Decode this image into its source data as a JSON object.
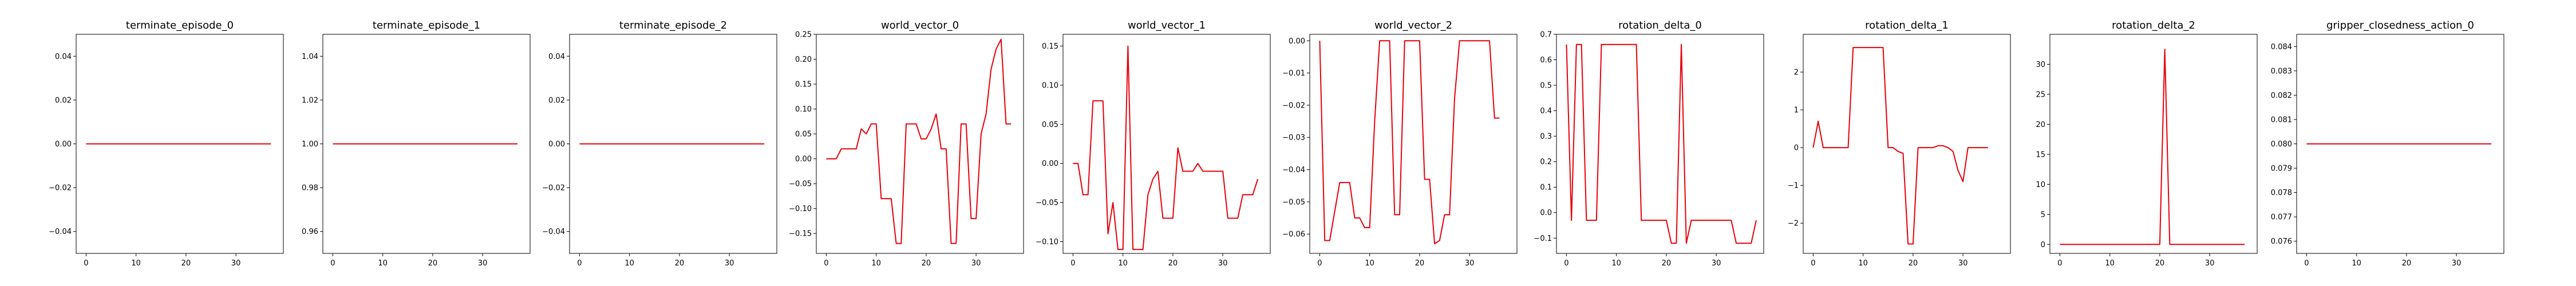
{
  "chart_data": [
    {
      "type": "line",
      "title": "terminate_episode_0",
      "ylim": [
        -0.05,
        0.05
      ],
      "xlim": [
        -2,
        39.5
      ],
      "xticks": [
        0,
        10,
        20,
        30
      ],
      "yticks": [
        -0.04,
        -0.02,
        0.0,
        0.02,
        0.04
      ],
      "ydecimals": 2,
      "series": [
        {
          "color": "#e8000b",
          "values": [
            0,
            0,
            0,
            0,
            0,
            0,
            0,
            0,
            0,
            0,
            0,
            0,
            0,
            0,
            0,
            0,
            0,
            0,
            0,
            0,
            0,
            0,
            0,
            0,
            0,
            0,
            0,
            0,
            0,
            0,
            0,
            0,
            0,
            0,
            0,
            0,
            0,
            0
          ]
        }
      ]
    },
    {
      "type": "line",
      "title": "terminate_episode_1",
      "ylim": [
        0.95,
        1.05
      ],
      "xlim": [
        -2,
        39.5
      ],
      "xticks": [
        0,
        10,
        20,
        30
      ],
      "yticks": [
        0.96,
        0.98,
        1.0,
        1.02,
        1.04
      ],
      "ydecimals": 2,
      "series": [
        {
          "color": "#e8000b",
          "values": [
            1,
            1,
            1,
            1,
            1,
            1,
            1,
            1,
            1,
            1,
            1,
            1,
            1,
            1,
            1,
            1,
            1,
            1,
            1,
            1,
            1,
            1,
            1,
            1,
            1,
            1,
            1,
            1,
            1,
            1,
            1,
            1,
            1,
            1,
            1,
            1,
            1,
            1
          ]
        }
      ]
    },
    {
      "type": "line",
      "title": "terminate_episode_2",
      "ylim": [
        -0.05,
        0.05
      ],
      "xlim": [
        -2,
        39.5
      ],
      "xticks": [
        0,
        10,
        20,
        30
      ],
      "yticks": [
        -0.04,
        -0.02,
        0.0,
        0.02,
        0.04
      ],
      "ydecimals": 2,
      "series": [
        {
          "color": "#e8000b",
          "values": [
            0,
            0,
            0,
            0,
            0,
            0,
            0,
            0,
            0,
            0,
            0,
            0,
            0,
            0,
            0,
            0,
            0,
            0,
            0,
            0,
            0,
            0,
            0,
            0,
            0,
            0,
            0,
            0,
            0,
            0,
            0,
            0,
            0,
            0,
            0,
            0,
            0,
            0
          ]
        }
      ]
    },
    {
      "type": "line",
      "title": "world_vector_0",
      "ylim": [
        -0.19,
        0.25
      ],
      "xlim": [
        -2,
        39.5
      ],
      "xticks": [
        0,
        10,
        20,
        30
      ],
      "yticks": [
        -0.15,
        -0.1,
        -0.05,
        0.0,
        0.05,
        0.1,
        0.15,
        0.2,
        0.25
      ],
      "ydecimals": 2,
      "series": [
        {
          "color": "#e8000b",
          "values": [
            0.0,
            0.0,
            0.0,
            0.02,
            0.02,
            0.02,
            0.02,
            0.06,
            0.05,
            0.07,
            0.07,
            -0.08,
            -0.08,
            -0.08,
            -0.17,
            -0.17,
            0.07,
            0.07,
            0.07,
            0.04,
            0.04,
            0.06,
            0.09,
            0.02,
            0.02,
            -0.17,
            -0.17,
            0.07,
            0.07,
            -0.12,
            -0.12,
            0.05,
            0.09,
            0.18,
            0.22,
            0.24,
            0.07,
            0.07
          ]
        }
      ]
    },
    {
      "type": "line",
      "title": "world_vector_1",
      "ylim": [
        -0.115,
        0.165
      ],
      "xlim": [
        -2,
        39.5
      ],
      "xticks": [
        0,
        10,
        20,
        30
      ],
      "yticks": [
        -0.1,
        -0.05,
        0.0,
        0.05,
        0.1,
        0.15
      ],
      "ydecimals": 2,
      "series": [
        {
          "color": "#e8000b",
          "values": [
            0.0,
            0.0,
            -0.04,
            -0.04,
            0.08,
            0.08,
            0.08,
            -0.09,
            -0.05,
            -0.11,
            -0.11,
            0.15,
            -0.11,
            -0.11,
            -0.11,
            -0.04,
            -0.02,
            -0.01,
            -0.07,
            -0.07,
            -0.07,
            0.02,
            -0.01,
            -0.01,
            -0.01,
            0.0,
            -0.01,
            -0.01,
            -0.01,
            -0.01,
            -0.01,
            -0.07,
            -0.07,
            -0.07,
            -0.04,
            -0.04,
            -0.04,
            -0.02
          ]
        }
      ]
    },
    {
      "type": "line",
      "title": "world_vector_2",
      "ylim": [
        -0.066,
        0.002
      ],
      "xlim": [
        -2,
        39.5
      ],
      "xticks": [
        0,
        10,
        20,
        30
      ],
      "yticks": [
        -0.06,
        -0.05,
        -0.04,
        -0.03,
        -0.02,
        -0.01,
        0.0
      ],
      "ydecimals": 2,
      "series": [
        {
          "color": "#e8000b",
          "values": [
            0.0,
            -0.062,
            -0.062,
            -0.053,
            -0.044,
            -0.044,
            -0.044,
            -0.055,
            -0.055,
            -0.058,
            -0.058,
            -0.025,
            0.0,
            0.0,
            0.0,
            -0.054,
            -0.054,
            0.0,
            0.0,
            0.0,
            0.0,
            -0.043,
            -0.043,
            -0.063,
            -0.062,
            -0.054,
            -0.054,
            -0.018,
            0.0,
            0.0,
            0.0,
            0.0,
            0.0,
            0.0,
            0.0,
            -0.024,
            -0.024
          ]
        }
      ]
    },
    {
      "type": "line",
      "title": "rotation_delta_0",
      "ylim": [
        -0.16,
        0.7
      ],
      "xlim": [
        -2,
        39.5
      ],
      "xticks": [
        0,
        10,
        20,
        30
      ],
      "yticks": [
        -0.1,
        0.0,
        0.1,
        0.2,
        0.3,
        0.4,
        0.5,
        0.6,
        0.7
      ],
      "ydecimals": 1,
      "series": [
        {
          "color": "#e8000b",
          "values": [
            0.66,
            -0.03,
            0.66,
            0.66,
            -0.03,
            -0.03,
            -0.03,
            0.66,
            0.66,
            0.66,
            0.66,
            0.66,
            0.66,
            0.66,
            0.66,
            -0.03,
            -0.03,
            -0.03,
            -0.03,
            -0.03,
            -0.03,
            -0.12,
            -0.12,
            0.66,
            -0.12,
            -0.03,
            -0.03,
            -0.03,
            -0.03,
            -0.03,
            -0.03,
            -0.03,
            -0.03,
            -0.03,
            -0.12,
            -0.12,
            -0.12,
            -0.12,
            -0.03
          ]
        }
      ]
    },
    {
      "type": "line",
      "title": "rotation_delta_1",
      "ylim": [
        -2.8,
        3.0
      ],
      "xlim": [
        -2,
        39.5
      ],
      "xticks": [
        0,
        10,
        20,
        30
      ],
      "yticks": [
        -2,
        -1,
        0,
        1,
        2
      ],
      "ydecimals": 0,
      "series": [
        {
          "color": "#e8000b",
          "values": [
            0.0,
            0.7,
            0.0,
            0.0,
            0.0,
            0.0,
            0.0,
            0.0,
            2.65,
            2.65,
            2.65,
            2.65,
            2.65,
            2.65,
            2.65,
            0.0,
            0.0,
            -0.1,
            -0.15,
            -2.55,
            -2.55,
            0.0,
            0.0,
            0.0,
            0.0,
            0.05,
            0.05,
            0.0,
            -0.1,
            -0.6,
            -0.9,
            0.0,
            0.0,
            0.0,
            0.0,
            0.0
          ]
        }
      ]
    },
    {
      "type": "line",
      "title": "rotation_delta_2",
      "ylim": [
        -1.5,
        35
      ],
      "xlim": [
        -2,
        39.5
      ],
      "xticks": [
        0,
        10,
        20,
        30
      ],
      "yticks": [
        0,
        5,
        10,
        15,
        20,
        25,
        30
      ],
      "ydecimals": 0,
      "series": [
        {
          "color": "#e8000b",
          "values": [
            0,
            0,
            0,
            0,
            0,
            0,
            0,
            0,
            0,
            0,
            0,
            0,
            0,
            0,
            0,
            0,
            0,
            0,
            0,
            0,
            0,
            32.5,
            0,
            0,
            0,
            0,
            0,
            0,
            0,
            0,
            0,
            0,
            0,
            0,
            0,
            0,
            0,
            0
          ]
        }
      ]
    },
    {
      "type": "line",
      "title": "gripper_closedness_action_0",
      "ylim": [
        0.0755,
        0.0845
      ],
      "xlim": [
        -2,
        39.5
      ],
      "xticks": [
        0,
        10,
        20,
        30
      ],
      "yticks": [
        0.076,
        0.077,
        0.078,
        0.079,
        0.08,
        0.081,
        0.082,
        0.083,
        0.084
      ],
      "ydecimals": 3,
      "series": [
        {
          "color": "#e8000b",
          "values": [
            0.08,
            0.08,
            0.08,
            0.08,
            0.08,
            0.08,
            0.08,
            0.08,
            0.08,
            0.08,
            0.08,
            0.08,
            0.08,
            0.08,
            0.08,
            0.08,
            0.08,
            0.08,
            0.08,
            0.08,
            0.08,
            0.08,
            0.08,
            0.08,
            0.08,
            0.08,
            0.08,
            0.08,
            0.08,
            0.08,
            0.08,
            0.08,
            0.08,
            0.08,
            0.08,
            0.08,
            0.08,
            0.08
          ]
        }
      ]
    }
  ]
}
